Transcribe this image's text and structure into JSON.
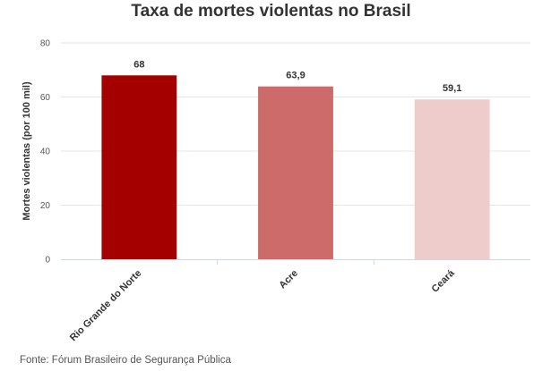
{
  "chart_data": {
    "type": "bar",
    "title": "Taxa de mortes violentas no Brasil",
    "ylabel": "Mortes violentas (por 100 mil)",
    "xlabel": "",
    "categories": [
      "Rio Grande do Norte",
      "Acre",
      "Ceará"
    ],
    "values": [
      68,
      63.9,
      59.1
    ],
    "data_labels": [
      "68",
      "63,9",
      "59,1"
    ],
    "colors": [
      "#a50000",
      "#cd6a6a",
      "#efcccc"
    ],
    "ylim": [
      0,
      80
    ],
    "yticks": [
      0,
      20,
      40,
      60,
      80
    ],
    "grid": true,
    "legend": "none"
  },
  "source": "Fonte: Fórum Brasileiro de Segurança Pública",
  "colors": {
    "grid": "#e6e6e6",
    "axis": "#ccd6eb"
  }
}
